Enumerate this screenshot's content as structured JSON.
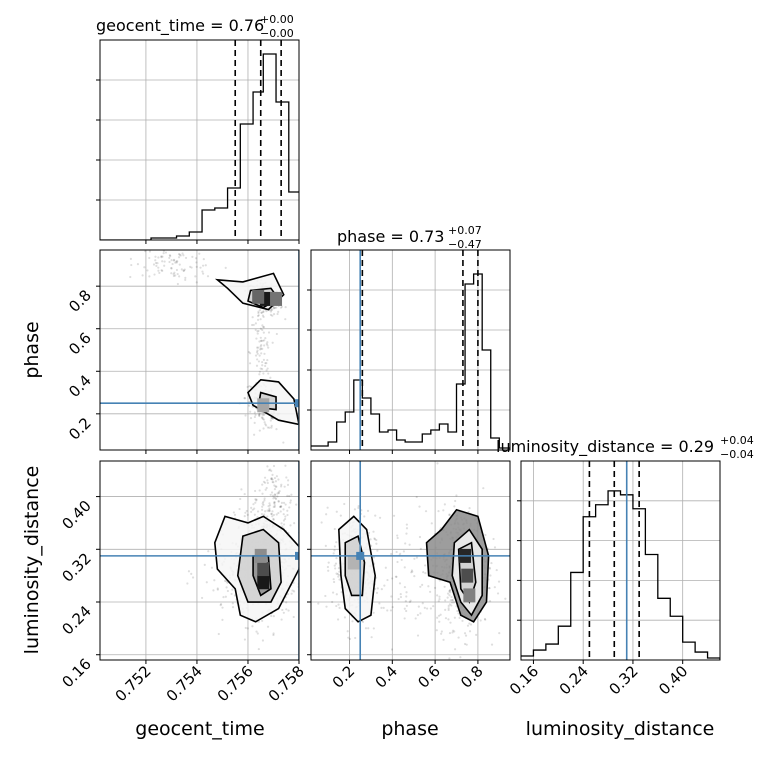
{
  "figure": {
    "parameters": [
      "geocent_time",
      "phase",
      "luminosity_distance"
    ],
    "truths": {
      "geocent_time": 0.758,
      "phase": 0.25,
      "luminosity_distance": 0.31
    },
    "colors": {
      "truth": "#4682b4",
      "contour": "#000000",
      "scatter": "#000000",
      "grid": "#b0b0b0"
    }
  },
  "chart_data": [
    {
      "type": "histogram",
      "parameter": "geocent_time",
      "title": {
        "main": "geocent_time = 0.76",
        "sup": "+0.00",
        "sub": "−0.00"
      },
      "x": {
        "range": [
          0.7502,
          0.758
        ],
        "grid": [
          0.752,
          0.754,
          0.756,
          0.758
        ]
      },
      "quantiles": [
        0.7555,
        0.7565,
        0.7573
      ],
      "bins": [
        [
          0.7502,
          0.0
        ],
        [
          0.7522,
          0.01
        ],
        [
          0.7527,
          0.01
        ],
        [
          0.7532,
          0.02
        ],
        [
          0.7537,
          0.04
        ],
        [
          0.7542,
          0.15
        ],
        [
          0.7547,
          0.16
        ],
        [
          0.7552,
          0.26
        ],
        [
          0.7557,
          0.58
        ],
        [
          0.7562,
          0.74
        ],
        [
          0.7566,
          0.93
        ],
        [
          0.7571,
          0.69
        ],
        [
          0.7576,
          0.24
        ],
        [
          0.758,
          0.24
        ]
      ],
      "ylim": [
        0,
        1
      ]
    },
    {
      "type": "histogram",
      "parameter": "phase",
      "title": {
        "main": "phase = 0.73",
        "sup": "+0.07",
        "sub": "−0.47"
      },
      "x": {
        "range": [
          0.02,
          0.95
        ],
        "grid": [
          0.2,
          0.4,
          0.6,
          0.8
        ]
      },
      "truth": 0.25,
      "quantiles": [
        0.26,
        0.73,
        0.8
      ],
      "bins": [
        [
          0.02,
          0.02
        ],
        [
          0.06,
          0.02
        ],
        [
          0.1,
          0.04
        ],
        [
          0.14,
          0.14
        ],
        [
          0.18,
          0.19
        ],
        [
          0.22,
          0.35
        ],
        [
          0.26,
          0.26
        ],
        [
          0.3,
          0.18
        ],
        [
          0.34,
          0.09
        ],
        [
          0.38,
          0.1
        ],
        [
          0.42,
          0.05
        ],
        [
          0.46,
          0.04
        ],
        [
          0.5,
          0.04
        ],
        [
          0.54,
          0.08
        ],
        [
          0.58,
          0.1
        ],
        [
          0.62,
          0.13
        ],
        [
          0.66,
          0.09
        ],
        [
          0.7,
          0.33
        ],
        [
          0.74,
          0.83
        ],
        [
          0.78,
          0.88
        ],
        [
          0.82,
          0.5
        ],
        [
          0.86,
          0.06
        ],
        [
          0.9,
          0.01
        ],
        [
          0.95,
          0.0
        ]
      ],
      "ylim": [
        0,
        1
      ]
    },
    {
      "type": "histogram",
      "parameter": "luminosity_distance",
      "title": {
        "main": "luminosity_distance = 0.29",
        "sup": "+0.04",
        "sub": "−0.04"
      },
      "x": {
        "range": [
          0.14,
          0.46
        ],
        "grid": [
          0.16,
          0.24,
          0.32,
          0.4
        ]
      },
      "truth": 0.31,
      "quantiles": [
        0.25,
        0.29,
        0.33
      ],
      "bins": [
        [
          0.14,
          0.02
        ],
        [
          0.16,
          0.05
        ],
        [
          0.18,
          0.08
        ],
        [
          0.2,
          0.17
        ],
        [
          0.22,
          0.44
        ],
        [
          0.24,
          0.72
        ],
        [
          0.26,
          0.78
        ],
        [
          0.28,
          0.85
        ],
        [
          0.3,
          0.83
        ],
        [
          0.32,
          0.76
        ],
        [
          0.34,
          0.53
        ],
        [
          0.36,
          0.31
        ],
        [
          0.38,
          0.22
        ],
        [
          0.4,
          0.09
        ],
        [
          0.42,
          0.04
        ],
        [
          0.44,
          0.01
        ],
        [
          0.46,
          0.0
        ]
      ],
      "ylim": [
        0,
        1
      ]
    },
    {
      "type": "scatter-contour",
      "x_param": "geocent_time",
      "y_param": "phase",
      "x": {
        "range": [
          0.7502,
          0.758
        ],
        "grid": [
          0.752,
          0.754,
          0.756,
          0.758
        ]
      },
      "y": {
        "range": [
          0.03,
          0.97
        ],
        "ticks": [
          0.2,
          0.4,
          0.6,
          0.8
        ],
        "label": "phase"
      },
      "truth": [
        0.758,
        0.25
      ],
      "clusters": [
        {
          "x": 0.7567,
          "y": 0.74,
          "sx": 0.00028,
          "sy": 0.035,
          "n": 260,
          "rho": -0.3
        },
        {
          "x": 0.7566,
          "y": 0.23,
          "sx": 0.00035,
          "sy": 0.05,
          "n": 170,
          "rho": -0.45
        },
        {
          "x": 0.7532,
          "y": 0.9,
          "sx": 0.0008,
          "sy": 0.04,
          "n": 90,
          "rho": -0.4
        },
        {
          "x": 0.7565,
          "y": 0.48,
          "sx": 0.0002,
          "sy": 0.12,
          "n": 90,
          "rho": 0.0
        }
      ],
      "contours": [
        [
          [
            0.7548,
            0.83
          ],
          [
            0.7558,
            0.82
          ],
          [
            0.757,
            0.86
          ],
          [
            0.7574,
            0.76
          ],
          [
            0.7568,
            0.69
          ],
          [
            0.7558,
            0.72
          ],
          [
            0.7552,
            0.79
          ],
          [
            0.7548,
            0.83
          ]
        ],
        [
          [
            0.7561,
            0.78
          ],
          [
            0.7569,
            0.79
          ],
          [
            0.7572,
            0.74
          ],
          [
            0.7566,
            0.7
          ],
          [
            0.756,
            0.73
          ],
          [
            0.7561,
            0.78
          ]
        ],
        [
          [
            0.7564,
            0.76
          ],
          [
            0.7569,
            0.76
          ],
          [
            0.7569,
            0.72
          ],
          [
            0.7564,
            0.73
          ],
          [
            0.7564,
            0.76
          ]
        ],
        [
          [
            0.7565,
            0.36
          ],
          [
            0.7572,
            0.35
          ],
          [
            0.7578,
            0.27
          ],
          [
            0.758,
            0.15
          ],
          [
            0.7572,
            0.17
          ],
          [
            0.7562,
            0.24
          ],
          [
            0.756,
            0.3
          ],
          [
            0.7565,
            0.36
          ]
        ],
        [
          [
            0.7565,
            0.3
          ],
          [
            0.7571,
            0.28
          ],
          [
            0.7571,
            0.22
          ],
          [
            0.7564,
            0.23
          ],
          [
            0.7565,
            0.3
          ]
        ]
      ],
      "heat": [
        [
          0.7567,
          0.74,
          0.9
        ],
        [
          0.7564,
          0.75,
          0.6
        ],
        [
          0.7571,
          0.74,
          0.55
        ],
        [
          0.7566,
          0.24,
          0.35
        ]
      ]
    },
    {
      "type": "scatter-contour",
      "x_param": "geocent_time",
      "y_param": "luminosity_distance",
      "x": {
        "range": [
          0.7502,
          0.758
        ],
        "grid": [
          0.752,
          0.754,
          0.756,
          0.758
        ],
        "ticks": [
          0.752,
          0.754,
          0.756,
          0.758
        ],
        "label": "geocent_time"
      },
      "y": {
        "range": [
          0.152,
          0.454
        ],
        "ticks": [
          0.16,
          0.24,
          0.32,
          0.4
        ],
        "label": "luminosity_distance"
      },
      "truth": [
        0.758,
        0.31
      ],
      "clusters": [
        {
          "x": 0.7567,
          "y": 0.31,
          "sx": 0.0006,
          "sy": 0.045,
          "n": 520,
          "rho": 0.0
        },
        {
          "x": 0.756,
          "y": 0.27,
          "sx": 0.0009,
          "sy": 0.03,
          "n": 170,
          "rho": -0.2
        },
        {
          "x": 0.757,
          "y": 0.4,
          "sx": 0.0003,
          "sy": 0.03,
          "n": 90,
          "rho": 0.0
        }
      ],
      "contours": [
        [
          [
            0.7551,
            0.37
          ],
          [
            0.756,
            0.36
          ],
          [
            0.7566,
            0.37
          ],
          [
            0.7574,
            0.35
          ],
          [
            0.7581,
            0.32
          ],
          [
            0.758,
            0.29
          ],
          [
            0.7572,
            0.23
          ],
          [
            0.7563,
            0.21
          ],
          [
            0.7557,
            0.22
          ],
          [
            0.7555,
            0.26
          ],
          [
            0.7548,
            0.29
          ],
          [
            0.7547,
            0.33
          ],
          [
            0.7551,
            0.37
          ]
        ],
        [
          [
            0.7558,
            0.34
          ],
          [
            0.7566,
            0.35
          ],
          [
            0.7572,
            0.33
          ],
          [
            0.7573,
            0.27
          ],
          [
            0.7569,
            0.24
          ],
          [
            0.756,
            0.24
          ],
          [
            0.7556,
            0.28
          ],
          [
            0.7558,
            0.34
          ]
        ],
        [
          [
            0.7562,
            0.31
          ],
          [
            0.7568,
            0.31
          ],
          [
            0.7569,
            0.26
          ],
          [
            0.7565,
            0.25
          ],
          [
            0.7562,
            0.28
          ],
          [
            0.7562,
            0.31
          ]
        ]
      ],
      "heat": [
        [
          0.7566,
          0.27,
          0.9
        ],
        [
          0.7566,
          0.29,
          0.7
        ],
        [
          0.7565,
          0.31,
          0.45
        ]
      ]
    },
    {
      "type": "scatter-contour",
      "x_param": "phase",
      "y_param": "luminosity_distance",
      "x": {
        "range": [
          0.02,
          0.95
        ],
        "grid": [
          0.2,
          0.4,
          0.6,
          0.8
        ],
        "ticks": [
          0.2,
          0.4,
          0.6,
          0.8
        ],
        "label": "phase"
      },
      "y": {
        "range": [
          0.152,
          0.454
        ],
        "grid": [
          0.16,
          0.24,
          0.32,
          0.4
        ]
      },
      "truth": [
        0.25,
        0.31
      ],
      "clusters": [
        {
          "x": 0.22,
          "y": 0.29,
          "sx": 0.05,
          "sy": 0.045,
          "n": 330,
          "rho": -0.1
        },
        {
          "x": 0.73,
          "y": 0.29,
          "sx": 0.06,
          "sy": 0.045,
          "n": 560,
          "rho": 0.0
        },
        {
          "x": 0.45,
          "y": 0.28,
          "sx": 0.1,
          "sy": 0.05,
          "n": 100,
          "rho": 0.0
        }
      ],
      "contours": [
        [
          [
            0.15,
            0.35
          ],
          [
            0.22,
            0.37
          ],
          [
            0.28,
            0.35
          ],
          [
            0.32,
            0.28
          ],
          [
            0.3,
            0.22
          ],
          [
            0.24,
            0.21
          ],
          [
            0.18,
            0.23
          ],
          [
            0.16,
            0.28
          ],
          [
            0.15,
            0.35
          ]
        ],
        [
          [
            0.18,
            0.33
          ],
          [
            0.24,
            0.34
          ],
          [
            0.27,
            0.3
          ],
          [
            0.26,
            0.25
          ],
          [
            0.21,
            0.25
          ],
          [
            0.18,
            0.28
          ],
          [
            0.18,
            0.33
          ]
        ],
        [
          [
            0.56,
            0.33
          ],
          [
            0.63,
            0.35
          ],
          [
            0.7,
            0.38
          ],
          [
            0.8,
            0.37
          ],
          [
            0.85,
            0.31
          ],
          [
            0.84,
            0.24
          ],
          [
            0.78,
            0.21
          ],
          [
            0.72,
            0.22
          ],
          [
            0.67,
            0.27
          ],
          [
            0.57,
            0.28
          ],
          [
            0.56,
            0.33
          ]
        ],
        [
          [
            0.69,
            0.33
          ],
          [
            0.76,
            0.35
          ],
          [
            0.82,
            0.32
          ],
          [
            0.82,
            0.25
          ],
          [
            0.77,
            0.22
          ],
          [
            0.72,
            0.24
          ],
          [
            0.68,
            0.28
          ],
          [
            0.69,
            0.33
          ]
        ],
        [
          [
            0.71,
            0.32
          ],
          [
            0.77,
            0.33
          ],
          [
            0.79,
            0.27
          ],
          [
            0.76,
            0.24
          ],
          [
            0.72,
            0.26
          ],
          [
            0.71,
            0.32
          ]
        ]
      ],
      "heat": [
        [
          0.74,
          0.31,
          0.85
        ],
        [
          0.75,
          0.28,
          0.7
        ],
        [
          0.76,
          0.25,
          0.5
        ],
        [
          0.22,
          0.3,
          0.3
        ]
      ]
    }
  ]
}
